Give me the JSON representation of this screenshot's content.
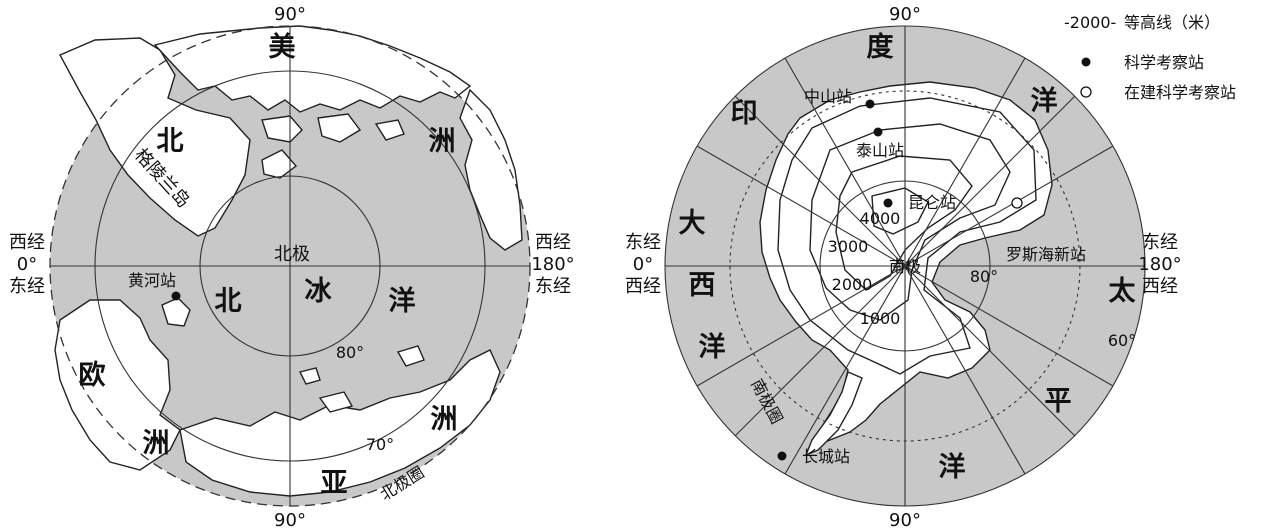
{
  "north_map": {
    "top_lon": "90°",
    "bottom_lon": "90°",
    "left_lon_top": "西经",
    "left_lon_mid": "0°",
    "left_lon_bot": "东经",
    "right_lon_top": "西经",
    "right_lon_mid": "180°",
    "right_lon_bot": "东经",
    "pole_label": "北极",
    "lat_80": "80°",
    "lat_70": "70°",
    "arctic_circle": "北极圈",
    "station": "黄河站",
    "greenland": "格陵兰岛",
    "north_america": [
      "北",
      "美",
      "洲"
    ],
    "ocean": [
      "北",
      "冰",
      "洋"
    ],
    "europe": [
      "欧",
      "洲"
    ],
    "asia": [
      "亚",
      "洲"
    ]
  },
  "south_map": {
    "top_lon": "90°",
    "bottom_lon": "90°",
    "left_lon_top": "东经",
    "left_lon_mid": "0°",
    "left_lon_bot": "西经",
    "right_lon_top": "东经",
    "right_lon_mid": "180°",
    "right_lon_bot": "西经",
    "pole_label": "南极",
    "lat_80": "80°",
    "lat_60": "60°",
    "antarctic_circle": "南极圈",
    "contours": [
      "4000",
      "3000",
      "2000",
      "1000"
    ],
    "stations": {
      "zhongshan": "中山站",
      "taishan": "泰山站",
      "kunlun": "昆仑站",
      "changcheng": "长城站",
      "ross_new": "罗斯海新站"
    },
    "indian_ocean": [
      "印",
      "度",
      "洋"
    ],
    "atlantic_ocean": [
      "大",
      "西",
      "洋"
    ],
    "pacific_ocean": [
      "太",
      "平",
      "洋"
    ]
  },
  "legend": {
    "contour_sample": "-2000-",
    "contour_label": "等高线（米）",
    "station_label": "科学考察站",
    "new_station_label": "在建科学考察站"
  }
}
